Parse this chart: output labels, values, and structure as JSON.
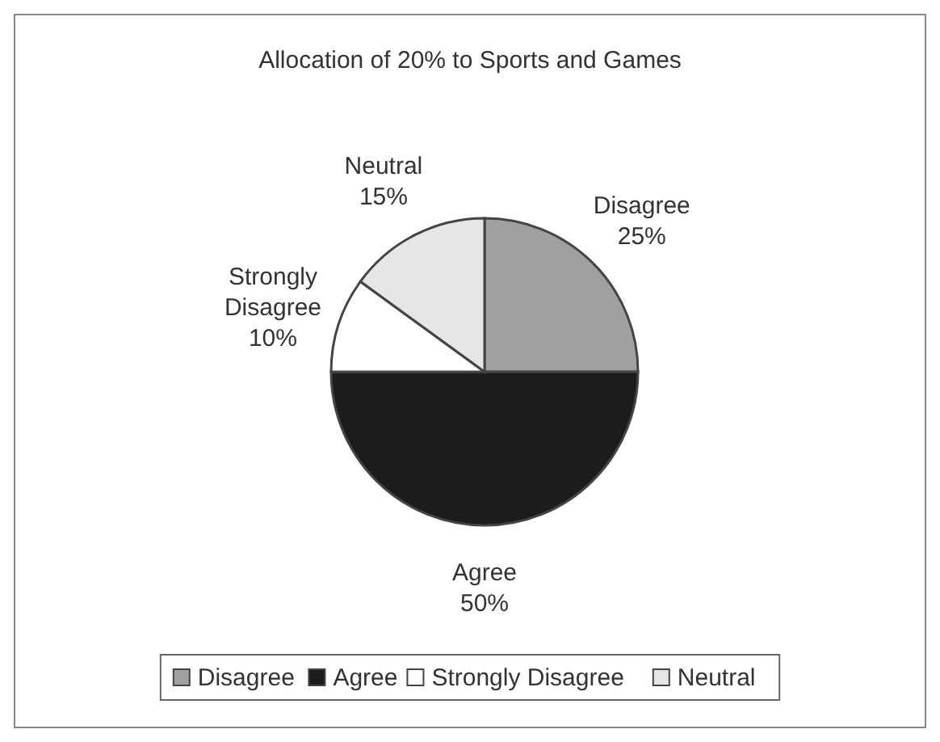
{
  "chart_data": {
    "type": "pie",
    "title": "Allocation of 20% to Sports and Games",
    "categories": [
      "Disagree",
      "Agree",
      "Strongly Disagree",
      "Neutral"
    ],
    "values": [
      25,
      50,
      10,
      15
    ],
    "value_labels": [
      "25%",
      "50%",
      "10%",
      "15%"
    ],
    "colors": [
      "#a0a0a0",
      "#1c1c1c",
      "#ffffff",
      "#e6e6e6"
    ],
    "legend": "bottom"
  }
}
